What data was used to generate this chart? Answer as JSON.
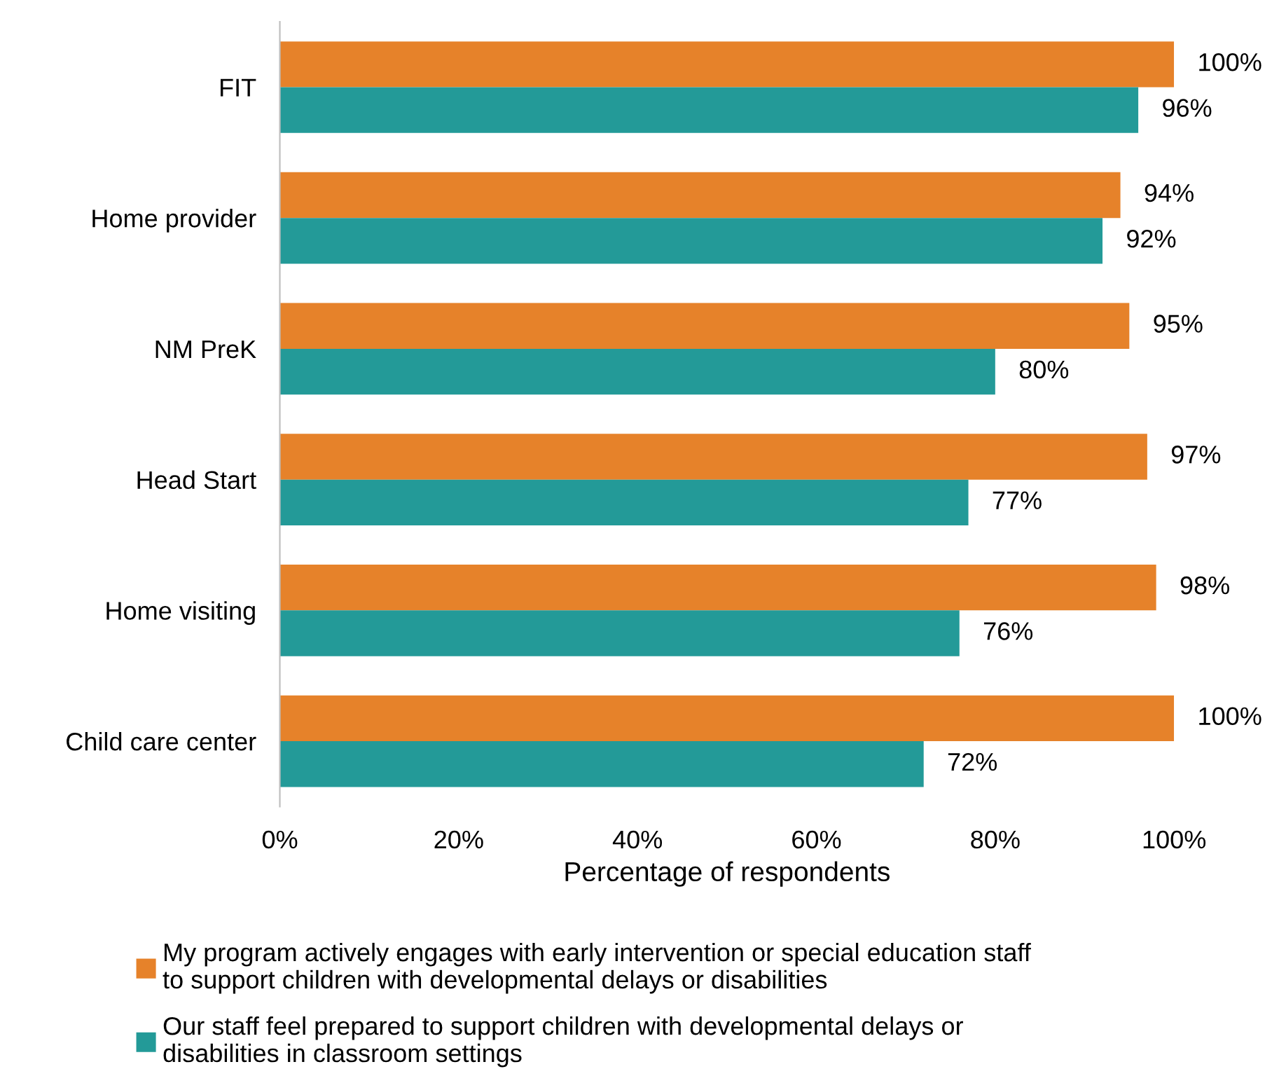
{
  "chart_data": {
    "type": "bar",
    "orientation": "horizontal",
    "xlabel": "Percentage of respondents",
    "categories": [
      "FIT",
      "Home provider",
      "NM PreK",
      "Head Start",
      "Home visiting",
      "Child care center"
    ],
    "series": [
      {
        "name": "My program actively engages with early intervention or special education staff\nto support children with developmental delays or disabilities",
        "color": "#e6822a",
        "values": [
          100,
          94,
          95,
          97,
          98,
          100
        ],
        "value_labels": [
          "100%",
          "94%",
          "95%",
          "97%",
          "98%",
          "100%"
        ]
      },
      {
        "name": "Our staff feel prepared to support children with developmental delays or\ndisabilities in classroom settings",
        "color": "#239a98",
        "values": [
          96,
          92,
          80,
          77,
          76,
          72
        ],
        "value_labels": [
          "96%",
          "92%",
          "80%",
          "77%",
          "76%",
          "72%"
        ]
      }
    ],
    "xlim": [
      0,
      100
    ],
    "xticks": [
      {
        "value": 0,
        "label": "0%"
      },
      {
        "value": 20,
        "label": "20%"
      },
      {
        "value": 40,
        "label": "40%"
      },
      {
        "value": 60,
        "label": "60%"
      },
      {
        "value": 80,
        "label": "80%"
      },
      {
        "value": 100,
        "label": "100%"
      }
    ],
    "grid": false,
    "legend": "bottom"
  }
}
